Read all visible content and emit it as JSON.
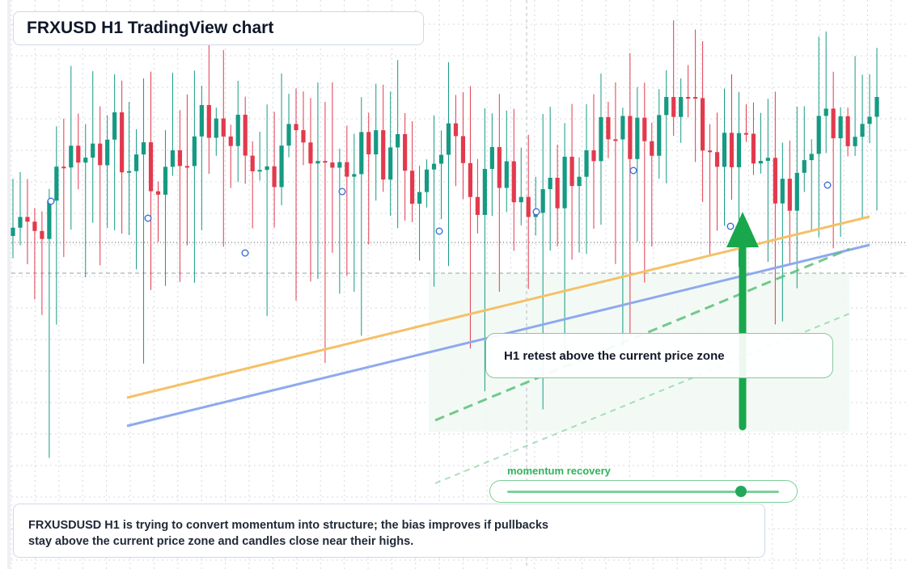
{
  "header": {
    "title": "FRXUSD H1 TradingView chart"
  },
  "callout": {
    "text": "H1 retest above the current price zone"
  },
  "momentum": {
    "label": "momentum recovery",
    "level": 0.86
  },
  "commentary": {
    "line1": "FRXUSDUSD H1 is trying to convert momentum into structure; the bias improves if pullbacks",
    "line2": "stay above the current price zone and candles close near their highs."
  },
  "colors": {
    "bull": "#159a83",
    "bear": "#e23a4d",
    "support_line": "#f5c066",
    "trend_line": "#8ea9ee",
    "channel": "#5cc07b",
    "arrow": "#19a74c",
    "grid": "#d5d9e0"
  },
  "chart_data": {
    "type": "candlestick",
    "title": "FRXUSD H1 TradingView chart",
    "timeframe": "H1",
    "candle_count": 120,
    "trend": "sideways range with late momentum recovery",
    "annotations": [
      "H1 retest above the current price zone",
      "momentum recovery"
    ],
    "grid": true,
    "legend": "none"
  }
}
